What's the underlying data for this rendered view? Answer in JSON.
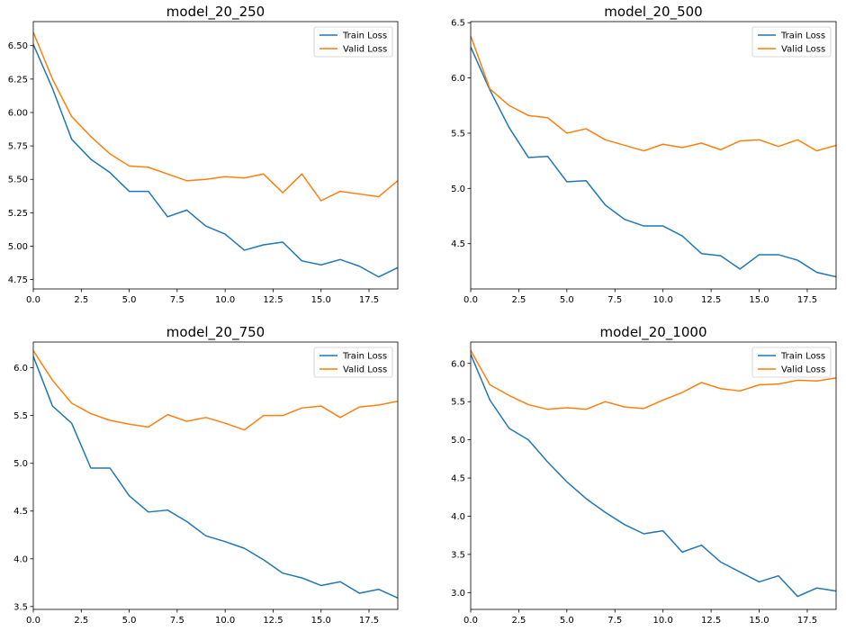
{
  "colors": {
    "train": "#1f77b4",
    "valid": "#ff7f0e",
    "axes": "#000000",
    "background": "#ffffff"
  },
  "chart_data": [
    {
      "type": "line",
      "title": "model_20_250",
      "xlim": [
        0,
        19
      ],
      "ylim": [
        4.68,
        6.68
      ],
      "xticks": [
        "0.0",
        "2.5",
        "5.0",
        "7.5",
        "10.0",
        "12.5",
        "15.0",
        "17.5"
      ],
      "xtick_values": [
        0,
        2.5,
        5,
        7.5,
        10,
        12.5,
        15,
        17.5
      ],
      "yticks": [
        "4.75",
        "5.00",
        "5.25",
        "5.50",
        "5.75",
        "6.00",
        "6.25",
        "6.50"
      ],
      "ytick_values": [
        4.75,
        5.0,
        5.25,
        5.5,
        5.75,
        6.0,
        6.25,
        6.5
      ],
      "legend_position": "top-right",
      "x": [
        0,
        1,
        2,
        3,
        4,
        5,
        6,
        7,
        8,
        9,
        10,
        11,
        12,
        13,
        14,
        15,
        16,
        17,
        18,
        19
      ],
      "series": [
        {
          "name": "Train Loss",
          "color": "#1f77b4",
          "values": [
            6.51,
            6.18,
            5.8,
            5.65,
            5.55,
            5.41,
            5.41,
            5.22,
            5.27,
            5.15,
            5.09,
            4.97,
            5.01,
            5.03,
            4.89,
            4.86,
            4.9,
            4.85,
            4.77,
            4.84
          ]
        },
        {
          "name": "Valid Loss",
          "color": "#ff7f0e",
          "values": [
            6.6,
            6.25,
            5.97,
            5.82,
            5.69,
            5.6,
            5.59,
            5.54,
            5.49,
            5.5,
            5.52,
            5.51,
            5.54,
            5.4,
            5.54,
            5.34,
            5.41,
            5.39,
            5.37,
            5.49
          ]
        }
      ]
    },
    {
      "type": "line",
      "title": "model_20_500",
      "xlim": [
        0,
        19
      ],
      "ylim": [
        4.09,
        6.51
      ],
      "xticks": [
        "0.0",
        "2.5",
        "5.0",
        "7.5",
        "10.0",
        "12.5",
        "15.0",
        "17.5"
      ],
      "xtick_values": [
        0,
        2.5,
        5,
        7.5,
        10,
        12.5,
        15,
        17.5
      ],
      "yticks": [
        "4.5",
        "5.0",
        "5.5",
        "6.0",
        "6.5"
      ],
      "ytick_values": [
        4.5,
        5.0,
        5.5,
        6.0,
        6.5
      ],
      "legend_position": "top-right",
      "x": [
        0,
        1,
        2,
        3,
        4,
        5,
        6,
        7,
        8,
        9,
        10,
        11,
        12,
        13,
        14,
        15,
        16,
        17,
        18,
        19
      ],
      "series": [
        {
          "name": "Train Loss",
          "color": "#1f77b4",
          "values": [
            6.28,
            5.89,
            5.55,
            5.28,
            5.29,
            5.06,
            5.07,
            4.85,
            4.72,
            4.66,
            4.66,
            4.57,
            4.41,
            4.39,
            4.27,
            4.4,
            4.4,
            4.35,
            4.24,
            4.2
          ]
        },
        {
          "name": "Valid Loss",
          "color": "#ff7f0e",
          "values": [
            6.38,
            5.9,
            5.75,
            5.66,
            5.64,
            5.5,
            5.54,
            5.44,
            5.39,
            5.34,
            5.4,
            5.37,
            5.41,
            5.35,
            5.43,
            5.44,
            5.38,
            5.44,
            5.34,
            5.39
          ]
        }
      ]
    },
    {
      "type": "line",
      "title": "model_20_750",
      "xlim": [
        0,
        19
      ],
      "ylim": [
        3.47,
        6.27
      ],
      "xticks": [
        "0.0",
        "2.5",
        "5.0",
        "7.5",
        "10.0",
        "12.5",
        "15.0",
        "17.5"
      ],
      "xtick_values": [
        0,
        2.5,
        5,
        7.5,
        10,
        12.5,
        15,
        17.5
      ],
      "yticks": [
        "3.5",
        "4.0",
        "4.5",
        "5.0",
        "5.5",
        "6.0"
      ],
      "ytick_values": [
        3.5,
        4.0,
        4.5,
        5.0,
        5.5,
        6.0
      ],
      "legend_position": "top-right",
      "x": [
        0,
        1,
        2,
        3,
        4,
        5,
        6,
        7,
        8,
        9,
        10,
        11,
        12,
        13,
        14,
        15,
        16,
        17,
        18,
        19
      ],
      "series": [
        {
          "name": "Train Loss",
          "color": "#1f77b4",
          "values": [
            6.12,
            5.6,
            5.42,
            4.95,
            4.95,
            4.66,
            4.49,
            4.51,
            4.39,
            4.24,
            4.18,
            4.11,
            3.99,
            3.85,
            3.8,
            3.72,
            3.76,
            3.64,
            3.68,
            3.59
          ]
        },
        {
          "name": "Valid Loss",
          "color": "#ff7f0e",
          "values": [
            6.18,
            5.87,
            5.63,
            5.52,
            5.45,
            5.41,
            5.38,
            5.51,
            5.44,
            5.48,
            5.42,
            5.35,
            5.5,
            5.5,
            5.58,
            5.6,
            5.48,
            5.59,
            5.61,
            5.65
          ]
        }
      ]
    },
    {
      "type": "line",
      "title": "model_20_1000",
      "xlim": [
        0,
        19
      ],
      "ylim": [
        2.78,
        6.28
      ],
      "xticks": [
        "0.0",
        "2.5",
        "5.0",
        "7.5",
        "10.0",
        "12.5",
        "15.0",
        "17.5"
      ],
      "xtick_values": [
        0,
        2.5,
        5,
        7.5,
        10,
        12.5,
        15,
        17.5
      ],
      "yticks": [
        "3.0",
        "3.5",
        "4.0",
        "4.5",
        "5.0",
        "5.5",
        "6.0"
      ],
      "ytick_values": [
        3.0,
        3.5,
        4.0,
        4.5,
        5.0,
        5.5,
        6.0
      ],
      "legend_position": "top-right",
      "x": [
        0,
        1,
        2,
        3,
        4,
        5,
        6,
        7,
        8,
        9,
        10,
        11,
        12,
        13,
        14,
        15,
        16,
        17,
        18,
        19
      ],
      "series": [
        {
          "name": "Train Loss",
          "color": "#1f77b4",
          "values": [
            6.12,
            5.52,
            5.15,
            5.0,
            4.71,
            4.45,
            4.23,
            4.05,
            3.89,
            3.77,
            3.81,
            3.53,
            3.62,
            3.4,
            3.27,
            3.14,
            3.22,
            2.95,
            3.06,
            3.02
          ]
        },
        {
          "name": "Valid Loss",
          "color": "#ff7f0e",
          "values": [
            6.17,
            5.72,
            5.58,
            5.46,
            5.4,
            5.42,
            5.4,
            5.5,
            5.43,
            5.41,
            5.52,
            5.62,
            5.75,
            5.67,
            5.64,
            5.72,
            5.73,
            5.78,
            5.77,
            5.81
          ]
        }
      ]
    }
  ]
}
